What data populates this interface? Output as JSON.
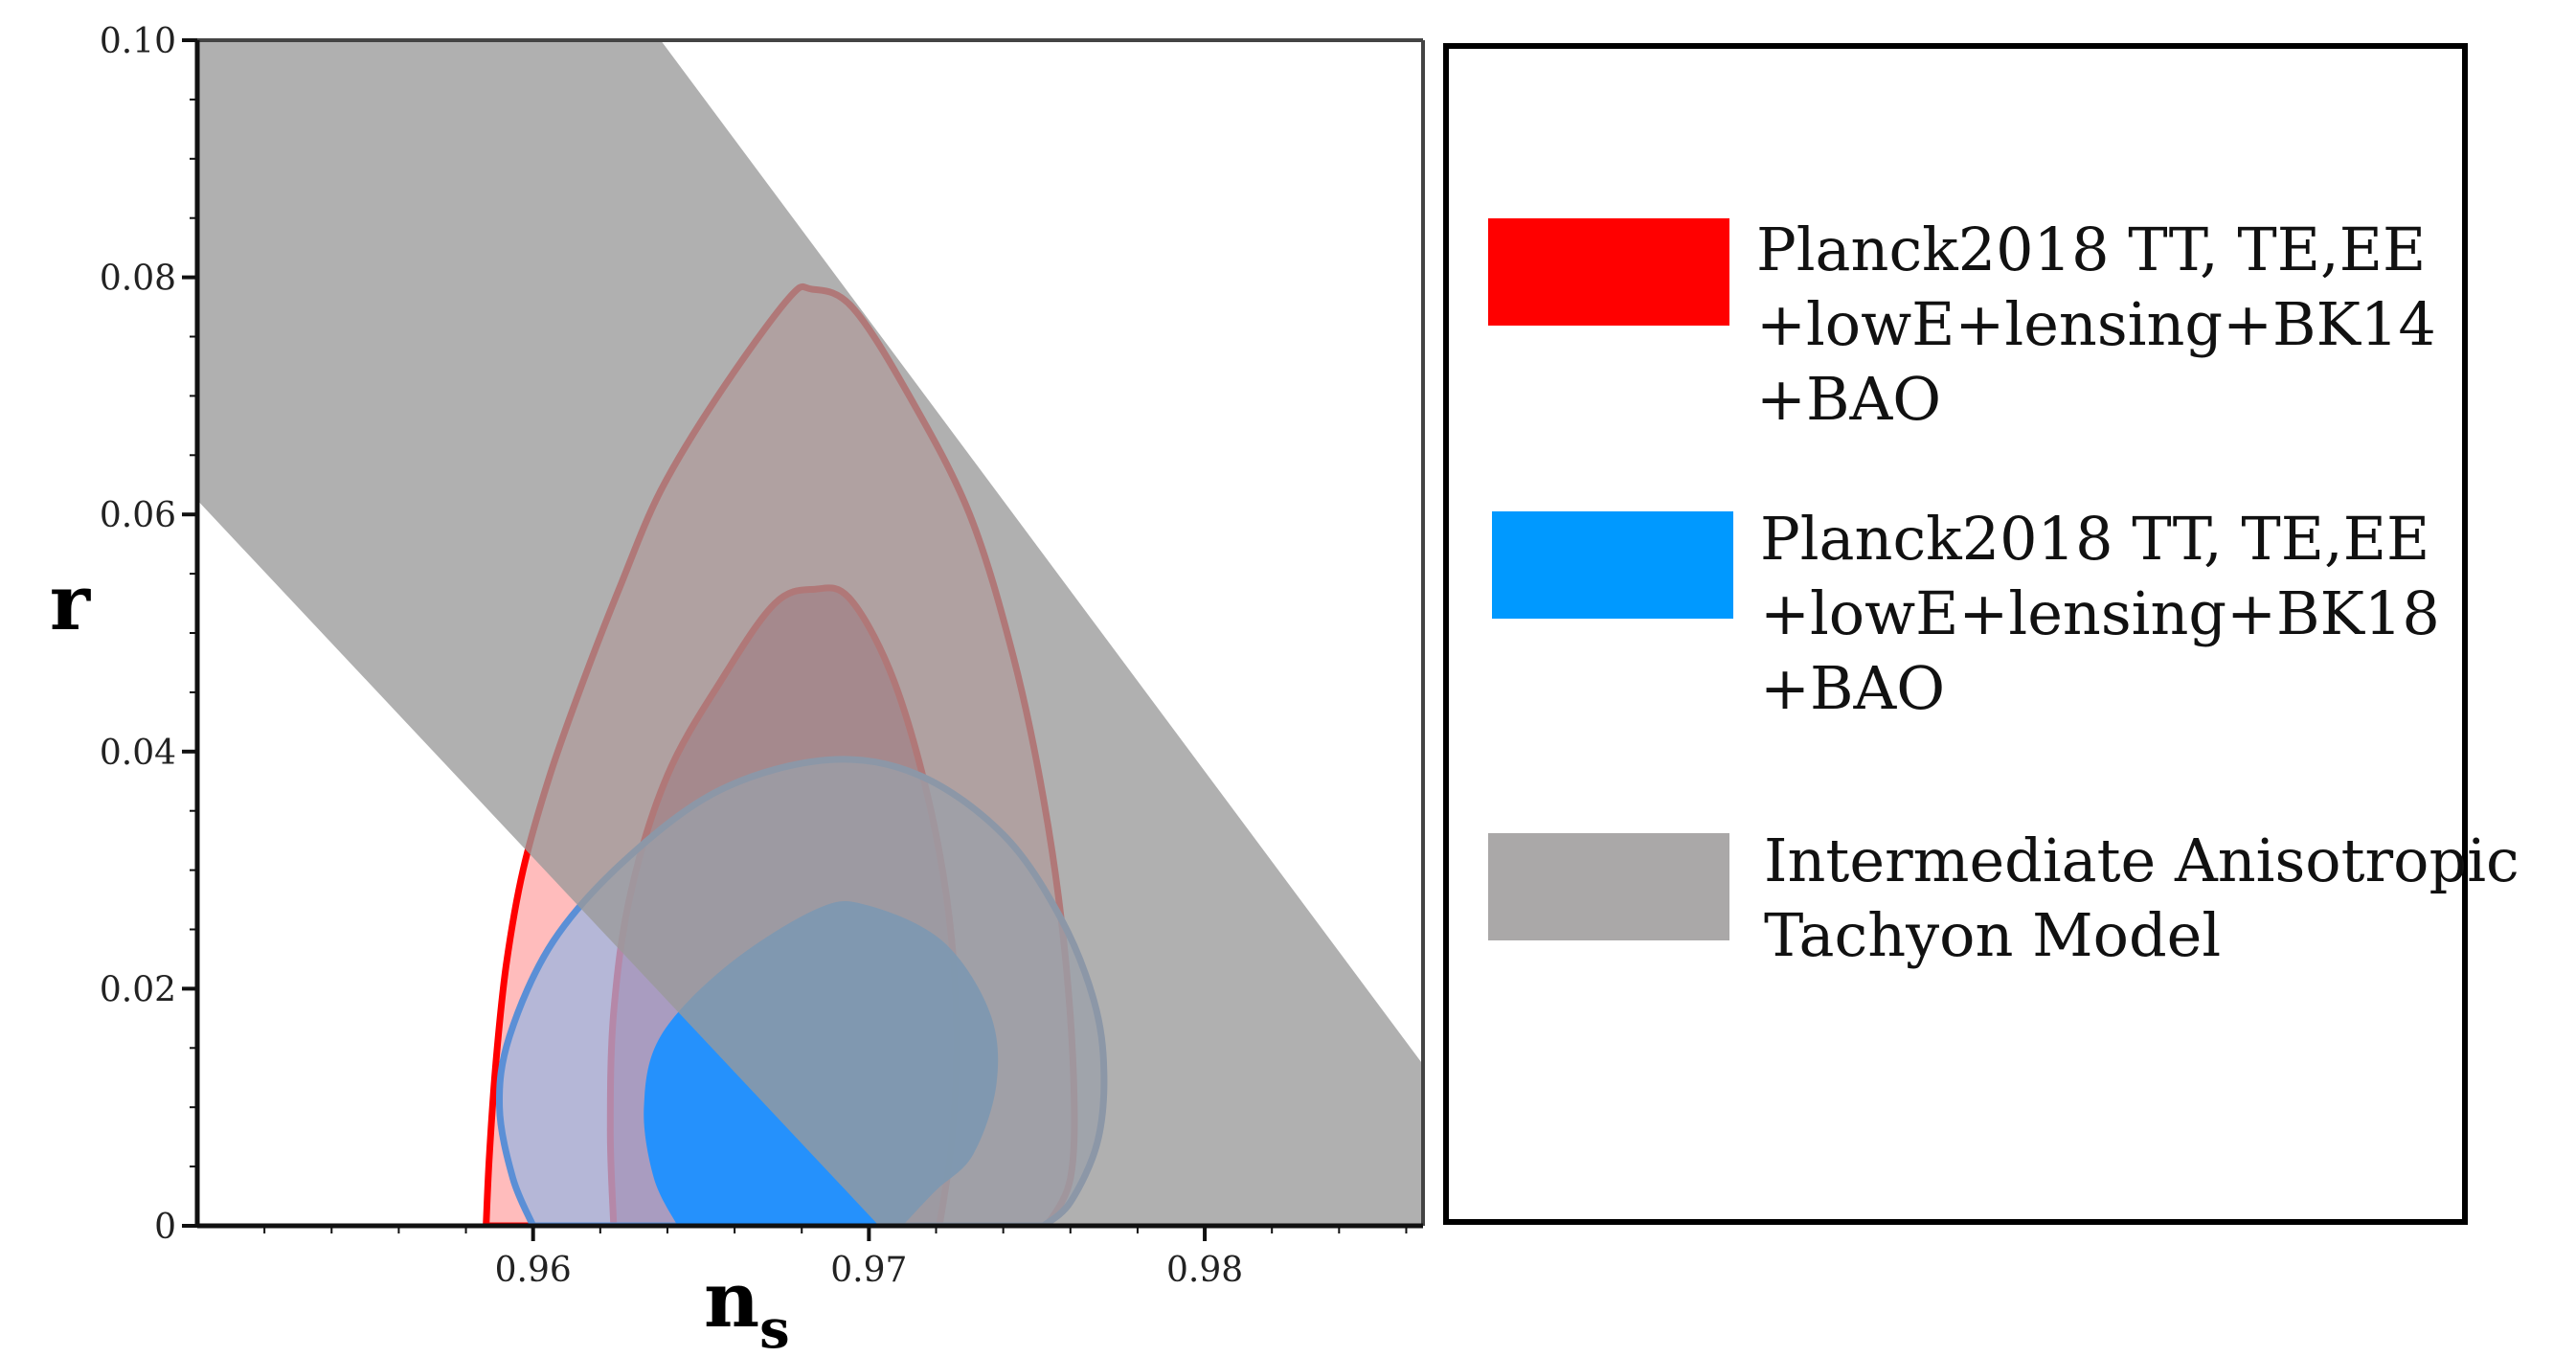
{
  "chart_data": {
    "type": "area",
    "xlabel": "n",
    "xlabel_subscript": "s",
    "ylabel": "r",
    "xlim": [
      0.95,
      0.9865
    ],
    "ylim": [
      0,
      0.1
    ],
    "xticks": [
      {
        "value": 0.96,
        "label": "0.96"
      },
      {
        "value": 0.97,
        "label": "0.97"
      },
      {
        "value": 0.98,
        "label": "0.98"
      }
    ],
    "yticks": [
      {
        "value": 0,
        "label": "0"
      },
      {
        "value": 0.02,
        "label": "0.02"
      },
      {
        "value": 0.04,
        "label": "0.04"
      },
      {
        "value": 0.06,
        "label": "0.06"
      },
      {
        "value": 0.08,
        "label": "0.08"
      },
      {
        "value": 0.1,
        "label": "0.10"
      }
    ],
    "grid": false,
    "legend_position": "right",
    "series": [
      {
        "name": "Planck2018 TT, TE,EE +lowE+lensing+BK14 +BAO",
        "legend_lines": [
          "Planck2018 TT, TE,EE",
          "+lowE+lensing+BK14",
          "+BAO"
        ],
        "color": "#ff0000",
        "contours": [
          {
            "level": "95%",
            "fill": "#ff9090",
            "points": [
              [
                0.9586,
                0
              ],
              [
                0.9587,
                0.006
              ],
              [
                0.9589,
                0.014
              ],
              [
                0.9592,
                0.022
              ],
              [
                0.9597,
                0.03
              ],
              [
                0.9605,
                0.038
              ],
              [
                0.9615,
                0.046
              ],
              [
                0.9626,
                0.054
              ],
              [
                0.9638,
                0.062
              ],
              [
                0.9655,
                0.07
              ],
              [
                0.9676,
                0.0782
              ],
              [
                0.9683,
                0.079
              ],
              [
                0.9695,
                0.0775
              ],
              [
                0.9712,
                0.07
              ],
              [
                0.973,
                0.06
              ],
              [
                0.9743,
                0.048
              ],
              [
                0.9752,
                0.036
              ],
              [
                0.9758,
                0.024
              ],
              [
                0.9761,
                0.012
              ],
              [
                0.976,
                0.004
              ],
              [
                0.9753,
                0
              ]
            ]
          },
          {
            "level": "68%",
            "fill": "#c0344a",
            "points": [
              [
                0.9624,
                0
              ],
              [
                0.9623,
                0.008
              ],
              [
                0.9624,
                0.018
              ],
              [
                0.9629,
                0.028
              ],
              [
                0.964,
                0.038
              ],
              [
                0.9656,
                0.046
              ],
              [
                0.9672,
                0.0525
              ],
              [
                0.9684,
                0.0537
              ],
              [
                0.9694,
                0.053
              ],
              [
                0.9706,
                0.047
              ],
              [
                0.9716,
                0.038
              ],
              [
                0.9723,
                0.028
              ],
              [
                0.9726,
                0.018
              ],
              [
                0.9725,
                0.008
              ],
              [
                0.9721,
                0
              ]
            ]
          }
        ]
      },
      {
        "name": "Planck2018 TT, TE,EE +lowE+lensing+BK18 +BAO",
        "legend_lines": [
          "Planck2018 TT, TE,EE",
          "+lowE+lensing+BK18",
          "+BAO"
        ],
        "color": "#0099ff",
        "contours": [
          {
            "level": "95%",
            "fill": "#9cb6e0",
            "points": [
              [
                0.96,
                0
              ],
              [
                0.9594,
                0.004
              ],
              [
                0.959,
                0.01
              ],
              [
                0.9593,
                0.016
              ],
              [
                0.9606,
                0.024
              ],
              [
                0.9628,
                0.031
              ],
              [
                0.9656,
                0.0368
              ],
              [
                0.9688,
                0.0393
              ],
              [
                0.9715,
                0.038
              ],
              [
                0.974,
                0.033
              ],
              [
                0.9757,
                0.026
              ],
              [
                0.9767,
                0.019
              ],
              [
                0.977,
                0.013
              ],
              [
                0.9768,
                0.007
              ],
              [
                0.976,
                0.002
              ],
              [
                0.9752,
                0
              ]
            ]
          },
          {
            "level": "68%",
            "fill": "#1e90ff",
            "points": [
              [
                0.9643,
                0
              ],
              [
                0.9636,
                0.004
              ],
              [
                0.9633,
                0.01
              ],
              [
                0.9638,
                0.016
              ],
              [
                0.9658,
                0.022
              ],
              [
                0.9685,
                0.0268
              ],
              [
                0.97,
                0.027
              ],
              [
                0.9722,
                0.024
              ],
              [
                0.9736,
                0.018
              ],
              [
                0.9738,
                0.012
              ],
              [
                0.9731,
                0.006
              ],
              [
                0.972,
                0.003
              ],
              [
                0.971,
                0
              ]
            ]
          }
        ]
      },
      {
        "name": "Intermediate Anisotropic Tachyon Model",
        "legend_lines": [
          "Intermediate Anisotropic",
          "Tachyon Model"
        ],
        "color": "#aaa8a8",
        "band": {
          "fill": "#9a9a9a",
          "points": [
            [
              0.95,
              0.1
            ],
            [
              0.9638,
              0.1
            ],
            [
              0.9865,
              0.0136
            ],
            [
              0.9865,
              0
            ],
            [
              0.9703,
              0
            ],
            [
              0.95,
              0.0612
            ]
          ]
        }
      }
    ]
  }
}
